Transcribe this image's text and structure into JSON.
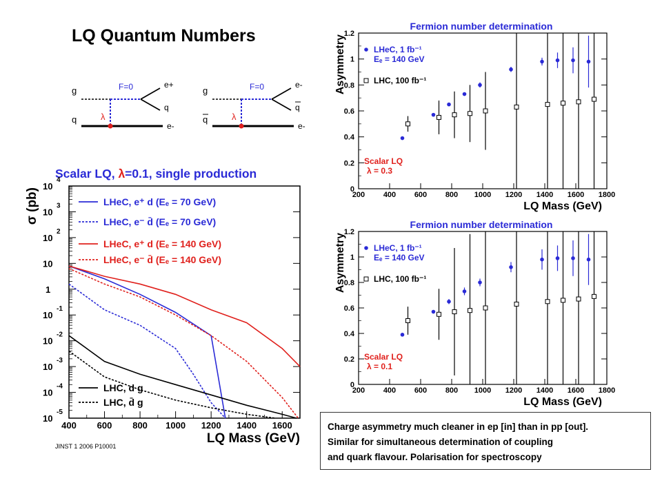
{
  "slide": {
    "title": "LQ Quantum Numbers",
    "citation": "JINST 1 2006 P10001",
    "note_lines": [
      "Charge asymmetry much cleaner in ep [in] than in pp [out].",
      "Similar for simultaneous determination of coupling",
      "and quark flavour.  Polarisation for spectroscopy"
    ]
  },
  "diagrams": [
    {
      "vertex_label": "F=0",
      "coupling_label": "λ",
      "legs": {
        "top_left": "g",
        "bottom_left": "q",
        "top_right": "e+",
        "mid_right": "q",
        "bottom_right": "e-"
      }
    },
    {
      "vertex_label": "F=0",
      "coupling_label": "λ",
      "legs": {
        "top_left": "g",
        "bottom_left": "q",
        "top_right": "e-",
        "mid_right": "q",
        "bottom_right": "e-"
      }
    }
  ],
  "colors": {
    "lhec_70": "#2a2ad6",
    "lhec_140": "#e0201c",
    "lhc": "#000000",
    "heading_blue": "#2a2ad6",
    "scalar_red": "#e0201c"
  },
  "chart_data": [
    {
      "type": "line",
      "title_parts": [
        "Scalar LQ, ",
        "λ",
        "=0.1, single production"
      ],
      "xlabel": "LQ Mass (GeV)",
      "ylabel": "σ (pb)",
      "xlim": [
        400,
        1700
      ],
      "ylim_log10": [
        -5,
        4
      ],
      "x_ticks": [
        400,
        600,
        800,
        1000,
        1200,
        1400,
        1600
      ],
      "y_tick_exponents": [
        4,
        3,
        2,
        1,
        0,
        -1,
        -2,
        -3,
        -4,
        -5
      ],
      "y_tick_base": "10",
      "y_tick_one": "1",
      "y_scale": "log",
      "series": [
        {
          "name": "LHeC, e⁺ d  (Eₑ = 70 GeV)",
          "color": "#2a2ad6",
          "dash": false,
          "x": [
            400,
            600,
            800,
            1000,
            1200,
            1280
          ],
          "log10_y": [
            0.9,
            0.4,
            -0.2,
            -0.9,
            -1.8,
            -5.0
          ]
        },
        {
          "name": "LHeC, e⁻ d̄  (Eₑ = 70 GeV)",
          "color": "#2a2ad6",
          "dash": true,
          "x": [
            400,
            600,
            800,
            1000,
            1100,
            1200,
            1280
          ],
          "log10_y": [
            0.2,
            -0.8,
            -1.4,
            -2.3,
            -3.3,
            -4.4,
            -5.0
          ]
        },
        {
          "name": "LHeC, e⁺ d  (Eₑ = 140 GeV)",
          "color": "#e0201c",
          "dash": false,
          "x": [
            400,
            600,
            800,
            1000,
            1200,
            1400,
            1600,
            1700
          ],
          "log10_y": [
            0.9,
            0.5,
            0.2,
            -0.2,
            -0.8,
            -1.3,
            -2.3,
            -3.0
          ]
        },
        {
          "name": "LHeC, e⁻ d̄  (Eₑ = 140 GeV)",
          "color": "#e0201c",
          "dash": true,
          "x": [
            400,
            600,
            800,
            1000,
            1200,
            1400,
            1600,
            1690
          ],
          "log10_y": [
            0.8,
            0.2,
            -0.3,
            -1.0,
            -1.8,
            -2.8,
            -4.2,
            -5.0
          ]
        },
        {
          "name": "LHC, d g",
          "color": "#000000",
          "dash": false,
          "x": [
            400,
            600,
            800,
            1000,
            1200,
            1400,
            1600,
            1680
          ],
          "log10_y": [
            -1.8,
            -2.8,
            -3.3,
            -3.7,
            -4.1,
            -4.5,
            -4.85,
            -5.0
          ]
        },
        {
          "name": "LHC, d̄ g",
          "color": "#000000",
          "dash": true,
          "x": [
            400,
            600,
            800,
            1000,
            1200,
            1400,
            1560
          ],
          "log10_y": [
            -2.4,
            -3.4,
            -3.9,
            -4.3,
            -4.6,
            -4.85,
            -5.0
          ]
        }
      ]
    },
    {
      "type": "scatter",
      "title": "Fermion number determination",
      "xlabel": "LQ Mass (GeV)",
      "ylabel": "Asymmetry",
      "xlim": [
        200,
        1800
      ],
      "ylim": [
        0,
        1.2
      ],
      "x_ticks": [
        200,
        400,
        600,
        800,
        1000,
        1200,
        1400,
        1600,
        1800
      ],
      "y_ticks": [
        "0",
        "0.2",
        "0.4",
        "0.6",
        "0.8",
        "1",
        "1.2"
      ],
      "legend": [
        "LHeC, 1 fb⁻¹",
        "Eₑ = 140 GeV",
        "LHC, 100 fb⁻¹"
      ],
      "annotation": [
        "Scalar LQ",
        "λ = 0.3"
      ],
      "series": [
        {
          "name": "LHeC",
          "marker": "filled-circle",
          "color": "#2a2ad6",
          "x": [
            500,
            700,
            800,
            900,
            1000,
            1200,
            1400,
            1500,
            1600,
            1700
          ],
          "y": [
            0.39,
            0.57,
            0.65,
            0.73,
            0.8,
            0.92,
            0.98,
            0.99,
            0.99,
            0.98
          ],
          "err": [
            0,
            0,
            0.01,
            0.01,
            0.02,
            0.02,
            0.03,
            0.06,
            0.1,
            0.2
          ]
        },
        {
          "name": "LHC",
          "marker": "open-square",
          "color": "#000000",
          "x": [
            500,
            700,
            800,
            900,
            1000,
            1200,
            1400,
            1500,
            1600,
            1700
          ],
          "y": [
            0.5,
            0.55,
            0.57,
            0.58,
            0.6,
            0.63,
            0.65,
            0.66,
            0.67,
            0.69
          ],
          "err": [
            0.06,
            0.13,
            0.18,
            0.22,
            0.3,
            0.7,
            0.7,
            0.7,
            0.7,
            0.7
          ]
        }
      ]
    },
    {
      "type": "scatter",
      "title": "Fermion number determination",
      "xlabel": "LQ Mass (GeV)",
      "ylabel": "Asymmetry",
      "xlim": [
        200,
        1800
      ],
      "ylim": [
        0,
        1.2
      ],
      "x_ticks": [
        200,
        400,
        600,
        800,
        1000,
        1200,
        1400,
        1600,
        1800
      ],
      "y_ticks": [
        "0",
        "0.2",
        "0.4",
        "0.6",
        "0.8",
        "1",
        "1.2"
      ],
      "legend": [
        "LHeC, 1 fb⁻¹",
        "Eₑ = 140 GeV",
        "LHC, 100 fb⁻¹"
      ],
      "annotation": [
        "Scalar LQ",
        "λ = 0.1"
      ],
      "series": [
        {
          "name": "LHeC",
          "marker": "filled-circle",
          "color": "#2a2ad6",
          "x": [
            500,
            700,
            800,
            900,
            1000,
            1200,
            1400,
            1500,
            1600,
            1700
          ],
          "y": [
            0.39,
            0.57,
            0.65,
            0.73,
            0.8,
            0.92,
            0.98,
            0.99,
            0.99,
            0.98
          ],
          "err": [
            0.01,
            0.01,
            0.02,
            0.03,
            0.03,
            0.04,
            0.08,
            0.1,
            0.14,
            0.2
          ]
        },
        {
          "name": "LHC",
          "marker": "open-square",
          "color": "#000000",
          "x": [
            500,
            700,
            800,
            900,
            1000,
            1200,
            1400,
            1500,
            1600,
            1700
          ],
          "y": [
            0.5,
            0.55,
            0.57,
            0.58,
            0.6,
            0.63,
            0.65,
            0.66,
            0.67,
            0.69
          ],
          "err": [
            0.11,
            0.2,
            0.5,
            0.6,
            0.6,
            0.7,
            0.7,
            0.7,
            0.7,
            0.7
          ]
        }
      ]
    }
  ]
}
